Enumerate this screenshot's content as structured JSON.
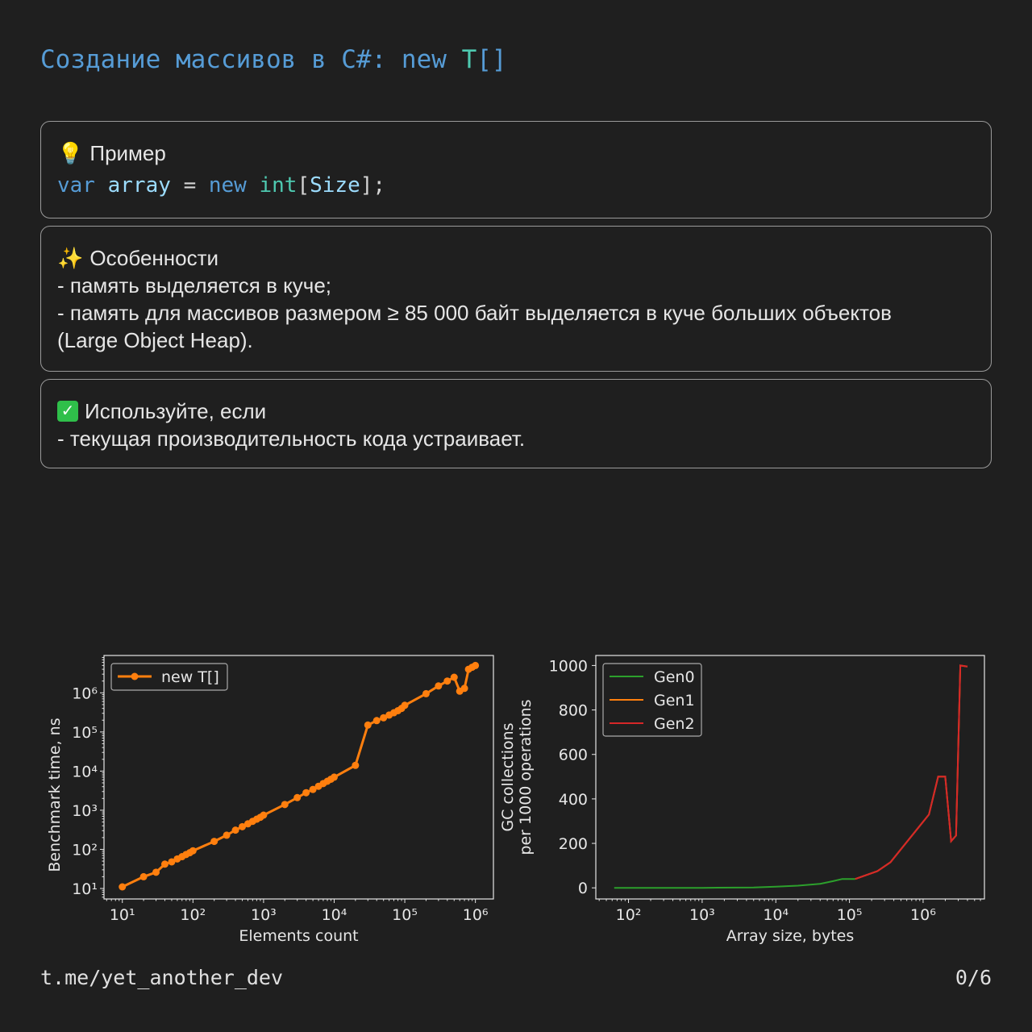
{
  "title": {
    "prefix": "Создание массивов в C#: new ",
    "type": "T",
    "suffix": "[]"
  },
  "example": {
    "icon": "lightbulb-icon",
    "heading": "Пример",
    "code": {
      "kw1": "var",
      "var": "array",
      "eq": "=",
      "kw2": "new",
      "type": "int",
      "open": "[",
      "size": "Size",
      "close": "];"
    }
  },
  "features": {
    "icon": "sparkles-icon",
    "heading": "Особенности",
    "lines": [
      "- память выделяется в куче;",
      "- память для массивов размером ≥ 85 000 байт выделяется в куче больших объектов (Large Object Heap)."
    ]
  },
  "use_if": {
    "icon": "check-icon",
    "heading": "Используйте, если",
    "lines": [
      "- текущая производительность кода устраивает."
    ]
  },
  "footer": {
    "channel": "t.me/yet_another_dev",
    "page": "0/6"
  },
  "colors": {
    "blue": "#569cd6",
    "teal": "#4ec9b0",
    "orange": "#ff7f0e",
    "green": "#2ca02c",
    "red": "#d62728"
  },
  "chart_data": [
    {
      "type": "line",
      "xscale": "log",
      "yscale": "log",
      "xlabel": "Elements count",
      "ylabel": "Benchmark time, ns",
      "xlim": [
        5.5,
        1800000
      ],
      "ylim": [
        5.4,
        9000000
      ],
      "xticks": [
        10,
        100,
        1000,
        10000,
        100000,
        1000000
      ],
      "yticks": [
        10,
        100,
        1000,
        10000,
        100000,
        1000000
      ],
      "legend": "top-left",
      "series": [
        {
          "name": "new T[]",
          "color": "#ff7f0e",
          "marker": "circle",
          "x": [
            10,
            20,
            30,
            40,
            50,
            60,
            70,
            80,
            90,
            100,
            200,
            300,
            400,
            500,
            600,
            700,
            800,
            900,
            1000,
            2000,
            3000,
            4000,
            5000,
            6000,
            7000,
            8000,
            9000,
            10000,
            20000,
            30000,
            40000,
            50000,
            60000,
            70000,
            80000,
            90000,
            100000,
            200000,
            300000,
            400000,
            500000,
            600000,
            700000,
            800000,
            900000,
            1000000
          ],
          "y": [
            11,
            20,
            26,
            42,
            48,
            57,
            65,
            74,
            82,
            92,
            160,
            230,
            310,
            380,
            450,
            520,
            590,
            660,
            750,
            1400,
            2100,
            2800,
            3400,
            4100,
            4800,
            5500,
            6200,
            7000,
            14000,
            150000,
            195000,
            230000,
            270000,
            310000,
            350000,
            400000,
            480000,
            950000,
            1500000,
            2000000,
            2500000,
            1100000,
            1300000,
            4000000,
            4500000,
            5000000
          ]
        }
      ]
    },
    {
      "type": "line",
      "xscale": "log",
      "yscale": "linear",
      "xlabel": "Array size, bytes",
      "ylabel": "GC collections\nper 1000 operations",
      "ylabel_lines": [
        "GC collections",
        "per 1000 operations"
      ],
      "xlim": [
        36,
        6800000
      ],
      "ylim": [
        -50,
        1045
      ],
      "xticks": [
        100,
        1000,
        10000,
        100000,
        1000000
      ],
      "yticks": [
        0,
        200,
        400,
        600,
        800,
        1000
      ],
      "legend": "top-left",
      "series": [
        {
          "name": "Gen0",
          "color": "#2ca02c",
          "x": [
            64,
            1000,
            5000,
            10000,
            20000,
            40000,
            60000,
            80000,
            120000
          ],
          "y": [
            0,
            0,
            2,
            5,
            10,
            18,
            30,
            40,
            40
          ]
        },
        {
          "name": "Gen1",
          "color": "#ff7f0e",
          "x": [
            120000,
            240000,
            360000,
            1200000,
            1600000,
            2000000,
            2400000,
            2800000,
            3200000,
            4000000
          ],
          "y": [
            40,
            75,
            115,
            330,
            500,
            500,
            210,
            235,
            1000,
            995
          ]
        },
        {
          "name": "Gen2",
          "color": "#d62728",
          "x": [
            120000,
            240000,
            360000,
            1200000,
            1600000,
            2000000,
            2400000,
            2800000,
            3200000,
            4000000
          ],
          "y": [
            40,
            75,
            115,
            330,
            500,
            500,
            210,
            235,
            1000,
            995
          ]
        }
      ]
    }
  ]
}
